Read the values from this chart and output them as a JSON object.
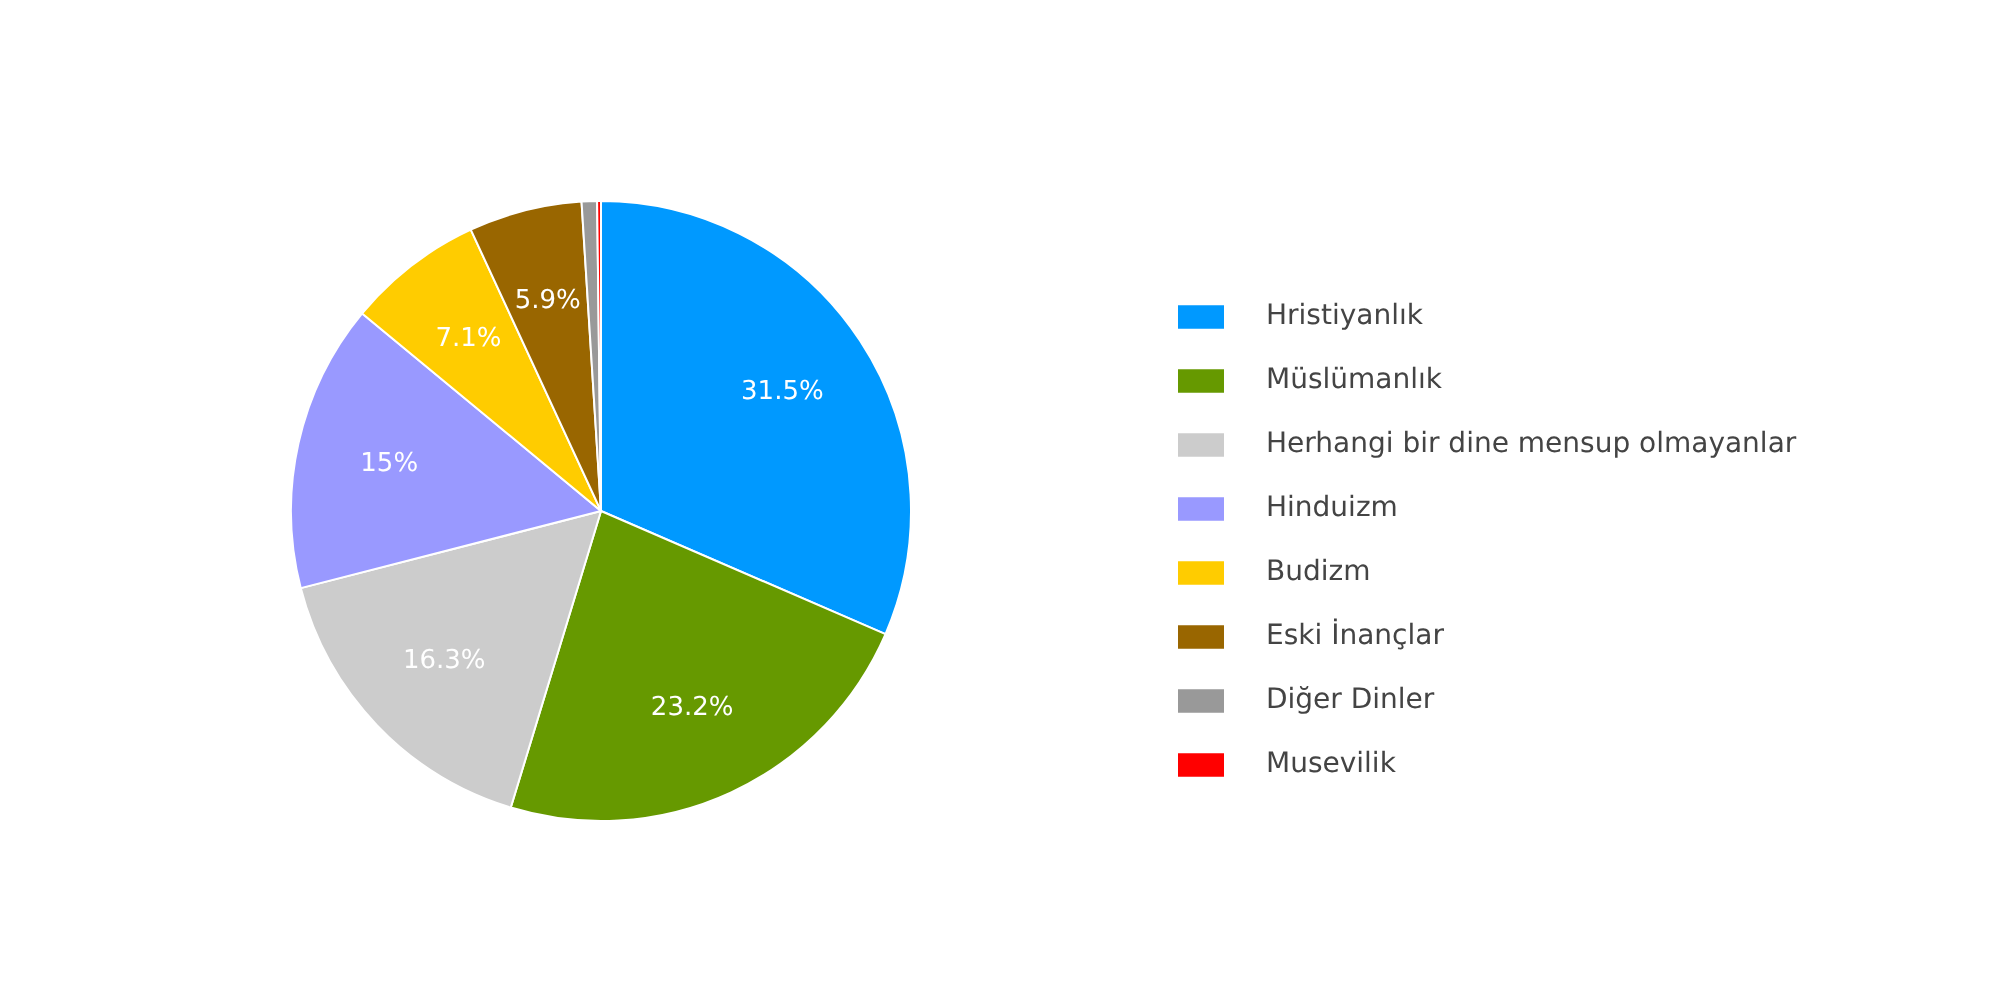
{
  "chart_data": {
    "type": "pie",
    "categories": [
      "Hristiyanlık",
      "Müslümanlık",
      "Herhangi bir dine mensup olmayanlar",
      "Hinduizm",
      "Budizm",
      "Eski İnançlar",
      "Diğer Dinler",
      "Musevilik"
    ],
    "values": [
      31.5,
      23.2,
      16.3,
      15,
      7.1,
      5.9,
      0.8,
      0.2
    ],
    "colors": [
      "#0099ff",
      "#669900",
      "#cccccc",
      "#9999ff",
      "#ffcc00",
      "#996600",
      "#999999",
      "#ff0000"
    ],
    "value_labels": [
      "31.5%",
      "23.2%",
      "16.3%",
      "15%",
      "7.1%",
      "5.9%",
      null,
      null
    ],
    "legend": "right"
  }
}
